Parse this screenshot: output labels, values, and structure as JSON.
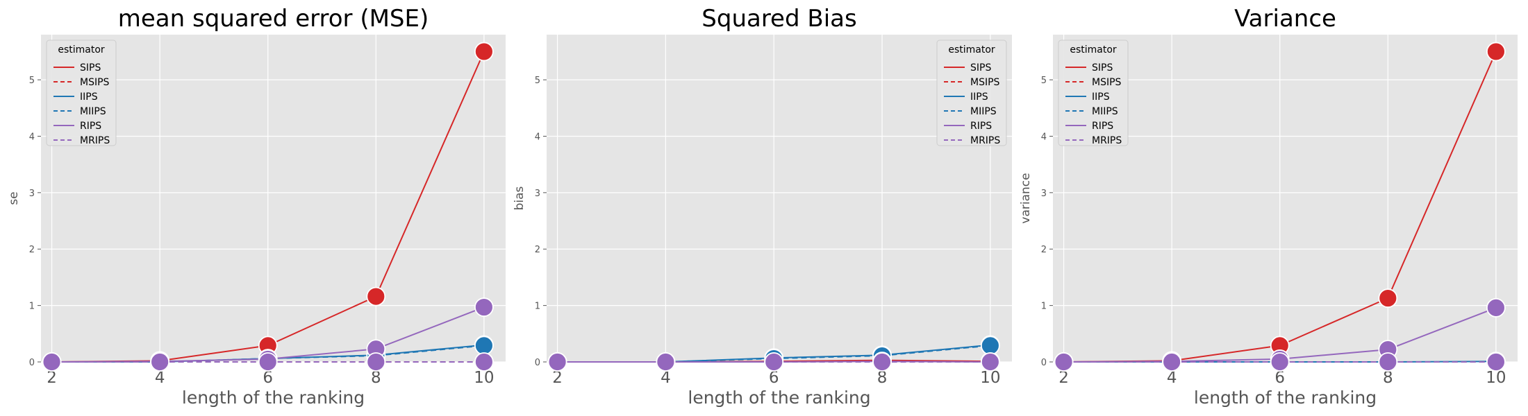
{
  "chart_data": [
    {
      "type": "line",
      "title": "mean squared error (MSE)",
      "xlabel": "length of the ranking",
      "ylabel": "se",
      "x": [
        2,
        4,
        6,
        8,
        10
      ],
      "xticks": [
        "2",
        "4",
        "6",
        "8",
        "10"
      ],
      "yticks": [
        "0",
        "1",
        "2",
        "3",
        "4",
        "5"
      ],
      "xlim": [
        1.8,
        10.4
      ],
      "ylim": [
        0,
        5.8
      ],
      "grid": true,
      "legend": {
        "title": "estimator",
        "placement": "top-left"
      },
      "series": [
        {
          "name": "SIPS",
          "color": "#d62728",
          "dash": "solid",
          "values": [
            0.0,
            0.02,
            0.29,
            1.16,
            5.5
          ]
        },
        {
          "name": "MSIPS",
          "color": "#d62728",
          "dash": "dashed",
          "values": [
            0.0,
            0.0,
            0.0,
            0.0,
            0.0
          ]
        },
        {
          "name": "IIPS",
          "color": "#1f77b4",
          "dash": "solid",
          "values": [
            0.0,
            0.0,
            0.06,
            0.12,
            0.3
          ]
        },
        {
          "name": "MIIPS",
          "color": "#1f77b4",
          "dash": "dashed",
          "values": [
            0.0,
            0.0,
            0.06,
            0.11,
            0.29
          ]
        },
        {
          "name": "RIPS",
          "color": "#9467bd",
          "dash": "solid",
          "values": [
            0.0,
            0.01,
            0.05,
            0.23,
            0.97
          ]
        },
        {
          "name": "MRIPS",
          "color": "#9467bd",
          "dash": "dashed",
          "values": [
            0.0,
            0.0,
            0.0,
            0.0,
            0.0
          ]
        }
      ]
    },
    {
      "type": "line",
      "title": "Squared Bias",
      "xlabel": "length of the ranking",
      "ylabel": "bias",
      "x": [
        2,
        4,
        6,
        8,
        10
      ],
      "xticks": [
        "2",
        "4",
        "6",
        "8",
        "10"
      ],
      "yticks": [
        "0",
        "1",
        "2",
        "3",
        "4",
        "5"
      ],
      "xlim": [
        1.8,
        10.4
      ],
      "ylim": [
        0,
        5.8
      ],
      "grid": true,
      "legend": {
        "title": "estimator",
        "placement": "top-right"
      },
      "series": [
        {
          "name": "SIPS",
          "color": "#d62728",
          "dash": "solid",
          "values": [
            0.0,
            0.0,
            0.01,
            0.03,
            0.01
          ]
        },
        {
          "name": "MSIPS",
          "color": "#d62728",
          "dash": "dashed",
          "values": [
            0.0,
            0.0,
            0.0,
            0.01,
            0.01
          ]
        },
        {
          "name": "IIPS",
          "color": "#1f77b4",
          "dash": "solid",
          "values": [
            0.0,
            0.0,
            0.07,
            0.12,
            0.3
          ]
        },
        {
          "name": "MIIPS",
          "color": "#1f77b4",
          "dash": "dashed",
          "values": [
            0.0,
            0.0,
            0.06,
            0.11,
            0.29
          ]
        },
        {
          "name": "RIPS",
          "color": "#9467bd",
          "dash": "solid",
          "values": [
            0.0,
            0.0,
            0.0,
            0.01,
            0.0
          ]
        },
        {
          "name": "MRIPS",
          "color": "#9467bd",
          "dash": "dashed",
          "values": [
            0.0,
            0.0,
            0.0,
            0.0,
            0.0
          ]
        }
      ]
    },
    {
      "type": "line",
      "title": "Variance",
      "xlabel": "length of the ranking",
      "ylabel": "variance",
      "x": [
        2,
        4,
        6,
        8,
        10
      ],
      "xticks": [
        "2",
        "4",
        "6",
        "8",
        "10"
      ],
      "yticks": [
        "0",
        "1",
        "2",
        "3",
        "4",
        "5"
      ],
      "xlim": [
        1.8,
        10.4
      ],
      "ylim": [
        0,
        5.8
      ],
      "grid": true,
      "legend": {
        "title": "estimator",
        "placement": "top-left"
      },
      "series": [
        {
          "name": "SIPS",
          "color": "#d62728",
          "dash": "solid",
          "values": [
            0.0,
            0.02,
            0.29,
            1.13,
            5.5
          ]
        },
        {
          "name": "MSIPS",
          "color": "#d62728",
          "dash": "dashed",
          "values": [
            0.0,
            0.0,
            0.0,
            0.0,
            0.0
          ]
        },
        {
          "name": "IIPS",
          "color": "#1f77b4",
          "dash": "solid",
          "values": [
            0.0,
            0.0,
            0.0,
            0.0,
            0.01
          ]
        },
        {
          "name": "MIIPS",
          "color": "#1f77b4",
          "dash": "dashed",
          "values": [
            0.0,
            0.0,
            0.0,
            0.0,
            0.0
          ]
        },
        {
          "name": "RIPS",
          "color": "#9467bd",
          "dash": "solid",
          "values": [
            0.0,
            0.01,
            0.05,
            0.22,
            0.96
          ]
        },
        {
          "name": "MRIPS",
          "color": "#9467bd",
          "dash": "dashed",
          "values": [
            0.0,
            0.0,
            0.0,
            0.0,
            0.0
          ]
        }
      ]
    }
  ]
}
